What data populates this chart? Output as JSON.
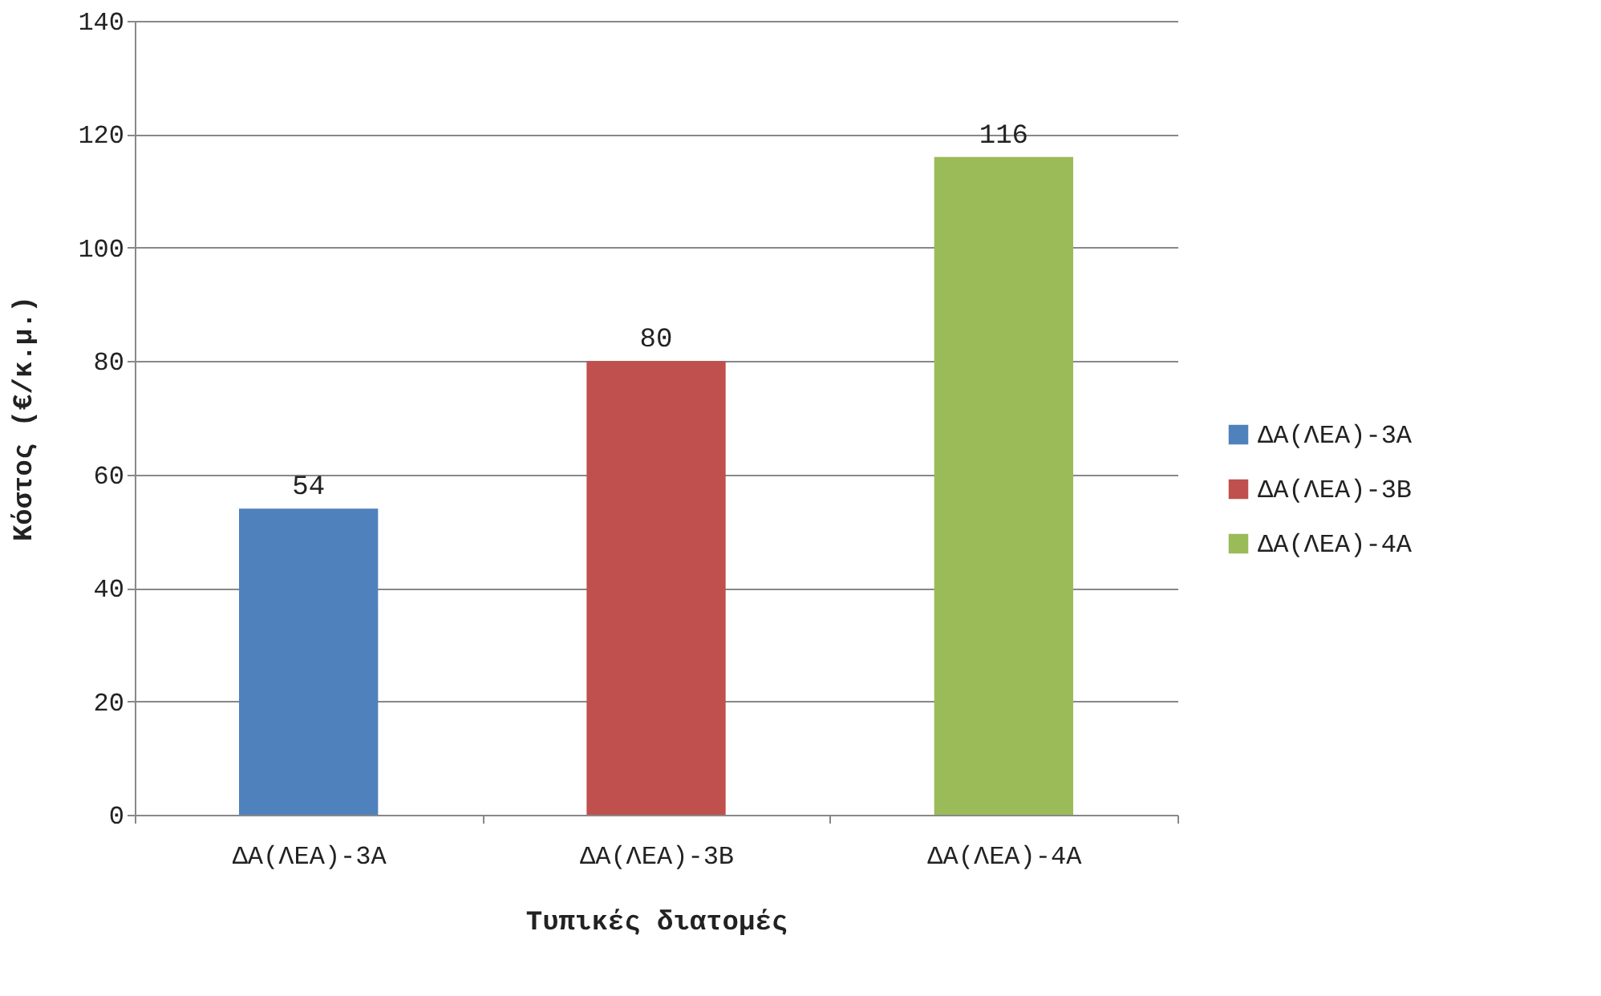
{
  "chart_data": {
    "type": "bar",
    "xlabel": "Τυπικές διατομές",
    "ylabel": "Κόστος (€/κ.μ.)",
    "categories": [
      "ΔΑ(ΛΕΑ)-3Α",
      "ΔΑ(ΛΕΑ)-3Β",
      "ΔΑ(ΛΕΑ)-4Α"
    ],
    "series": [
      {
        "name": "ΔΑ(ΛΕΑ)-3Α",
        "color": "#4f81bd",
        "values": [
          54,
          null,
          null
        ]
      },
      {
        "name": "ΔΑ(ΛΕΑ)-3Β",
        "color": "#c0504d",
        "values": [
          null,
          80,
          null
        ]
      },
      {
        "name": "ΔΑ(ΛΕΑ)-4Α",
        "color": "#9bbb59",
        "values": [
          null,
          null,
          116
        ]
      }
    ],
    "ylim": [
      0,
      140
    ],
    "yticks": [
      0,
      20,
      40,
      60,
      80,
      100,
      120,
      140
    ],
    "grid": "y",
    "legend": "right",
    "data_labels": true
  }
}
